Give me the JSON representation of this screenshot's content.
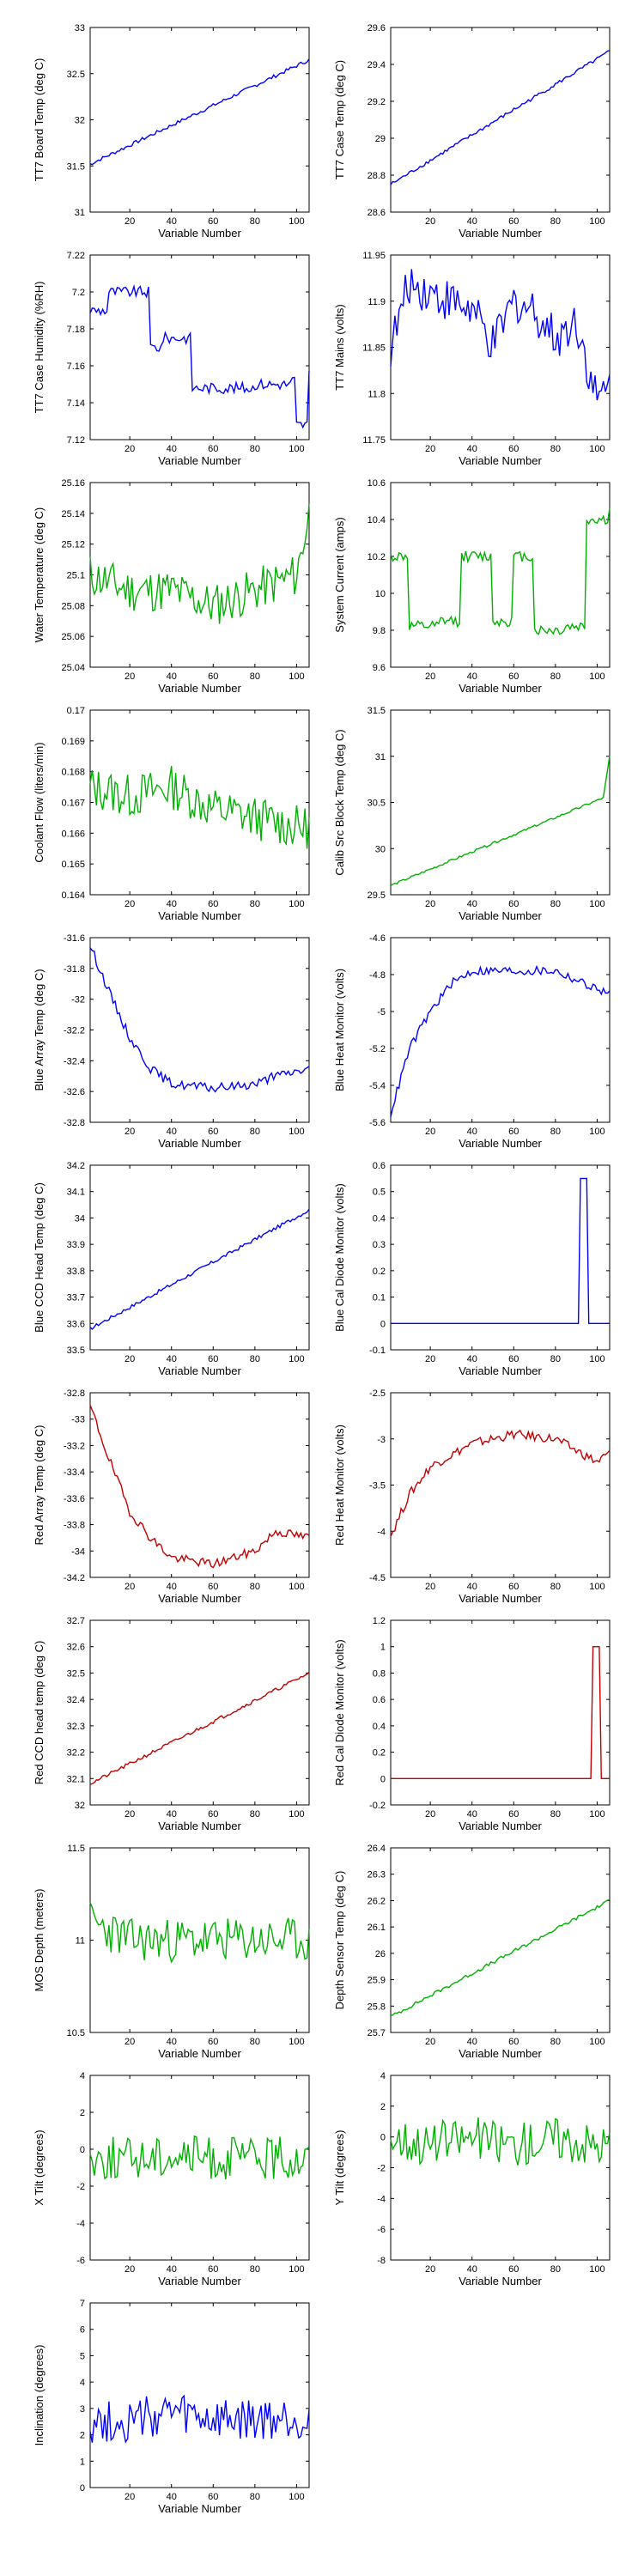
{
  "series_colors": {
    "blue": "#0000ff",
    "green": "#00b000",
    "red": "#c00000"
  },
  "chart_data": [
    {
      "type": "line",
      "title": "",
      "xlabel": "Variable Number",
      "ylabel": "TT7 Board Temp (deg C)",
      "xlim": [
        1,
        106
      ],
      "ylim": [
        31,
        33
      ],
      "xticks": [
        "20",
        "40",
        "60",
        "80",
        "100"
      ],
      "yticks": [
        "31",
        "31.5",
        "32",
        "32.5",
        "33"
      ],
      "color": "#0000ff",
      "shape": "linear",
      "series": [
        {
          "x": [
            1,
            106
          ],
          "y": [
            31.52,
            32.65
          ]
        }
      ]
    },
    {
      "type": "line",
      "title": "",
      "xlabel": "Variable Number",
      "ylabel": "TT7 Case Temp (deg C)",
      "xlim": [
        1,
        106
      ],
      "ylim": [
        28.6,
        29.6
      ],
      "xticks": [
        "20",
        "40",
        "60",
        "80",
        "100"
      ],
      "yticks": [
        "28.6",
        "28.8",
        "29",
        "29.2",
        "29.4",
        "29.6"
      ],
      "color": "#0000ff",
      "shape": "rising",
      "series": [
        {
          "x": [
            1,
            106
          ],
          "y": [
            28.75,
            29.47
          ]
        }
      ]
    },
    {
      "type": "line",
      "title": "",
      "xlabel": "Variable Number",
      "ylabel": "TT7 Case Humidity (%RH)",
      "xlim": [
        1,
        106
      ],
      "ylim": [
        7.12,
        7.22
      ],
      "xticks": [
        "20",
        "40",
        "60",
        "80",
        "100"
      ],
      "yticks": [
        "7.12",
        "7.14",
        "7.16",
        "7.18",
        "7.2",
        "7.22"
      ],
      "color": "#0000ff",
      "shape": "step",
      "series": [
        {
          "x": [
            1,
            10,
            20,
            30,
            36,
            44,
            50,
            60,
            80,
            98,
            100,
            106
          ],
          "y": [
            7.19,
            7.2,
            7.2,
            7.17,
            7.175,
            7.175,
            7.148,
            7.148,
            7.15,
            7.152,
            7.128,
            7.156
          ]
        }
      ]
    },
    {
      "type": "line",
      "title": "",
      "xlabel": "Variable Number",
      "ylabel": "TT7 Mains  (volts)",
      "xlim": [
        1,
        106
      ],
      "ylim": [
        11.75,
        11.95
      ],
      "xticks": [
        "20",
        "40",
        "60",
        "80",
        "100"
      ],
      "yticks": [
        "11.75",
        "11.8",
        "11.85",
        "11.9",
        "11.95"
      ],
      "color": "#0000ff",
      "shape": "noise",
      "series": [
        {
          "x": [
            1,
            10,
            20,
            30,
            40,
            50,
            60,
            70,
            80,
            90,
            100,
            106
          ],
          "y": [
            11.85,
            11.92,
            11.91,
            11.9,
            11.89,
            11.85,
            11.9,
            11.89,
            11.86,
            11.88,
            11.79,
            11.81
          ]
        }
      ]
    },
    {
      "type": "line",
      "title": "",
      "xlabel": "Variable Number",
      "ylabel": "Water Temperature (deg C)",
      "xlim": [
        1,
        106
      ],
      "ylim": [
        25.04,
        25.16
      ],
      "xticks": [
        "20",
        "40",
        "60",
        "80",
        "100"
      ],
      "yticks": [
        "25.04",
        "25.06",
        "25.08",
        "25.1",
        "25.12",
        "25.14",
        "25.16"
      ],
      "color": "#00b000",
      "shape": "noise",
      "series": [
        {
          "x": [
            1,
            20,
            40,
            60,
            80,
            100,
            106
          ],
          "y": [
            25.1,
            25.09,
            25.09,
            25.08,
            25.09,
            25.1,
            25.14
          ]
        }
      ]
    },
    {
      "type": "line",
      "title": "",
      "xlabel": "Variable Number",
      "ylabel": "System Current (amps)",
      "xlim": [
        1,
        106
      ],
      "ylim": [
        9.6,
        10.6
      ],
      "xticks": [
        "20",
        "40",
        "60",
        "80",
        "100"
      ],
      "yticks": [
        "9.6",
        "9.8",
        "10",
        "10.2",
        "10.4",
        "10.6"
      ],
      "color": "#00b000",
      "shape": "step",
      "series": [
        {
          "x": [
            1,
            10,
            25,
            35,
            50,
            60,
            70,
            85,
            95,
            106
          ],
          "y": [
            10.2,
            9.82,
            9.85,
            10.2,
            9.85,
            10.2,
            9.8,
            9.82,
            10.4,
            10.45
          ]
        }
      ]
    },
    {
      "type": "line",
      "title": "",
      "xlabel": "Variable Number",
      "ylabel": "Coolant Flow (liters/min)",
      "xlim": [
        1,
        106
      ],
      "ylim": [
        0.164,
        0.17
      ],
      "xticks": [
        "20",
        "40",
        "60",
        "80",
        "100"
      ],
      "yticks": [
        "0.164",
        "0.165",
        "0.166",
        "0.167",
        "0.168",
        "0.169",
        "0.17"
      ],
      "color": "#00b000",
      "shape": "noise",
      "series": [
        {
          "x": [
            1,
            20,
            40,
            60,
            80,
            100,
            106
          ],
          "y": [
            0.1675,
            0.1672,
            0.1675,
            0.1668,
            0.1665,
            0.1662,
            0.1662
          ]
        }
      ]
    },
    {
      "type": "line",
      "title": "",
      "xlabel": "Variable Number",
      "ylabel": "Calib Src Block Temp (deg C)",
      "xlim": [
        1,
        106
      ],
      "ylim": [
        29.5,
        31.5
      ],
      "xticks": [
        "20",
        "40",
        "60",
        "80",
        "100"
      ],
      "yticks": [
        "29.5",
        "30",
        "30.5",
        "31",
        "31.5"
      ],
      "color": "#00b000",
      "shape": "rising-jump",
      "series": [
        {
          "x": [
            1,
            103,
            106
          ],
          "y": [
            29.6,
            30.55,
            31.0
          ]
        }
      ]
    },
    {
      "type": "line",
      "title": "",
      "xlabel": "Variable Number",
      "ylabel": "Blue Array Temp (deg C)",
      "xlim": [
        1,
        106
      ],
      "ylim": [
        -32.8,
        -31.6
      ],
      "xticks": [
        "20",
        "40",
        "60",
        "80",
        "100"
      ],
      "yticks": [
        "-32.8",
        "-32.6",
        "-32.4",
        "-32.2",
        "-32",
        "-31.8",
        "-31.6"
      ],
      "color": "#0000ff",
      "shape": "decay",
      "series": [
        {
          "x": [
            1,
            10,
            20,
            30,
            40,
            60,
            80,
            90,
            106
          ],
          "y": [
            -31.65,
            -31.95,
            -32.25,
            -32.45,
            -32.55,
            -32.58,
            -32.55,
            -32.5,
            -32.45
          ]
        }
      ]
    },
    {
      "type": "line",
      "title": "",
      "xlabel": "Variable Number",
      "ylabel": "Blue Heat Monitor (volts)",
      "xlim": [
        1,
        106
      ],
      "ylim": [
        -5.6,
        -4.6
      ],
      "xticks": [
        "20",
        "40",
        "60",
        "80",
        "100"
      ],
      "yticks": [
        "-5.6",
        "-5.4",
        "-5.2",
        "-5",
        "-4.8",
        "-4.6"
      ],
      "color": "#0000ff",
      "shape": "rise-plateau",
      "series": [
        {
          "x": [
            1,
            10,
            20,
            30,
            40,
            60,
            80,
            100,
            106
          ],
          "y": [
            -5.55,
            -5.2,
            -5.0,
            -4.85,
            -4.78,
            -4.78,
            -4.78,
            -4.88,
            -4.9
          ]
        }
      ]
    },
    {
      "type": "line",
      "title": "",
      "xlabel": "Variable Number",
      "ylabel": "Blue CCD Head Temp (deg C)",
      "xlim": [
        1,
        106
      ],
      "ylim": [
        33.5,
        34.2
      ],
      "xticks": [
        "20",
        "40",
        "60",
        "80",
        "100"
      ],
      "yticks": [
        "33.5",
        "33.6",
        "33.7",
        "33.8",
        "33.9",
        "34",
        "34.1",
        "34.2"
      ],
      "color": "#0000ff",
      "shape": "linear",
      "series": [
        {
          "x": [
            1,
            106
          ],
          "y": [
            33.58,
            34.03
          ]
        }
      ]
    },
    {
      "type": "line",
      "title": "",
      "xlabel": "Variable Number",
      "ylabel": "Blue Cal Diode Monitor (volts)",
      "xlim": [
        1,
        106
      ],
      "ylim": [
        -0.1,
        0.6
      ],
      "xticks": [
        "20",
        "40",
        "60",
        "80",
        "100"
      ],
      "yticks": [
        "-0.1",
        "0",
        "0.1",
        "0.2",
        "0.3",
        "0.4",
        "0.5",
        "0.6"
      ],
      "color": "#0000ff",
      "shape": "spike",
      "series": [
        {
          "x": [
            1,
            91,
            92,
            95,
            96,
            106
          ],
          "y": [
            0,
            0,
            0.55,
            0.55,
            0,
            0
          ]
        }
      ]
    },
    {
      "type": "line",
      "title": "",
      "xlabel": "Variable Number",
      "ylabel": "Red Array Temp (deg C)",
      "xlim": [
        1,
        106
      ],
      "ylim": [
        -34.2,
        -32.8
      ],
      "xticks": [
        "20",
        "40",
        "60",
        "80",
        "100"
      ],
      "yticks": [
        "-34.2",
        "-34",
        "-33.8",
        "-33.6",
        "-33.4",
        "-33.2",
        "-33",
        "-32.8"
      ],
      "color": "#c00000",
      "shape": "decay",
      "series": [
        {
          "x": [
            1,
            10,
            20,
            30,
            40,
            60,
            80,
            90,
            106
          ],
          "y": [
            -32.9,
            -33.3,
            -33.7,
            -33.9,
            -34.05,
            -34.1,
            -34.0,
            -33.85,
            -33.9
          ]
        }
      ]
    },
    {
      "type": "line",
      "title": "",
      "xlabel": "Variable Number",
      "ylabel": "Red Heat Monitor (volts)",
      "xlim": [
        1,
        106
      ],
      "ylim": [
        -4.5,
        -2.5
      ],
      "xticks": [
        "20",
        "40",
        "60",
        "80",
        "100"
      ],
      "yticks": [
        "-4.5",
        "-4",
        "-3.5",
        "-3",
        "-2.5"
      ],
      "color": "#c00000",
      "shape": "rise-plateau",
      "series": [
        {
          "x": [
            1,
            10,
            20,
            40,
            60,
            80,
            100,
            106
          ],
          "y": [
            -4.05,
            -3.6,
            -3.3,
            -3.05,
            -2.95,
            -3.0,
            -3.25,
            -3.15
          ]
        }
      ]
    },
    {
      "type": "line",
      "title": "",
      "xlabel": "Variable Number",
      "ylabel": "Red CCD head temp (deg C)",
      "xlim": [
        1,
        106
      ],
      "ylim": [
        32,
        32.7
      ],
      "xticks": [
        "20",
        "40",
        "60",
        "80",
        "100"
      ],
      "yticks": [
        "32",
        "32.1",
        "32.2",
        "32.3",
        "32.4",
        "32.5",
        "32.6",
        "32.7"
      ],
      "color": "#c00000",
      "shape": "linear",
      "series": [
        {
          "x": [
            1,
            106
          ],
          "y": [
            32.08,
            32.5
          ]
        }
      ]
    },
    {
      "type": "line",
      "title": "",
      "xlabel": "Variable Number",
      "ylabel": "Red Cal Diode Monitor (volts)",
      "xlim": [
        1,
        106
      ],
      "ylim": [
        -0.2,
        1.2
      ],
      "xticks": [
        "20",
        "40",
        "60",
        "80",
        "100"
      ],
      "yticks": [
        "-0.2",
        "0",
        "0.2",
        "0.4",
        "0.6",
        "0.8",
        "1",
        "1.2"
      ],
      "color": "#c00000",
      "shape": "spike",
      "series": [
        {
          "x": [
            1,
            97,
            98,
            101,
            102,
            106
          ],
          "y": [
            0,
            0,
            1.0,
            1.0,
            0,
            0
          ]
        }
      ]
    },
    {
      "type": "line",
      "title": "",
      "xlabel": "Variable Number",
      "ylabel": "MOS Depth  (meters)",
      "xlim": [
        1,
        106
      ],
      "ylim": [
        10.5,
        11.5
      ],
      "xticks": [
        "20",
        "40",
        "60",
        "80",
        "100"
      ],
      "yticks": [
        "10.5",
        "11",
        "11.5"
      ],
      "color": "#00b000",
      "shape": "noise",
      "series": [
        {
          "x": [
            1,
            20,
            40,
            60,
            80,
            100,
            106
          ],
          "y": [
            11.1,
            11.0,
            11.0,
            11.0,
            11.0,
            11.0,
            11.0
          ]
        }
      ]
    },
    {
      "type": "line",
      "title": "",
      "xlabel": "Variable Number",
      "ylabel": "Depth Sensor Temp (deg C)",
      "xlim": [
        1,
        106
      ],
      "ylim": [
        25.7,
        26.4
      ],
      "xticks": [
        "20",
        "40",
        "60",
        "80",
        "100"
      ],
      "yticks": [
        "25.7",
        "25.8",
        "25.9",
        "26",
        "26.1",
        "26.2",
        "26.3",
        "26.4"
      ],
      "color": "#00b000",
      "shape": "linear",
      "series": [
        {
          "x": [
            1,
            106
          ],
          "y": [
            25.76,
            26.2
          ]
        }
      ]
    },
    {
      "type": "line",
      "title": "",
      "xlabel": "Variable Number",
      "ylabel": "X Tilt  (degrees)",
      "xlim": [
        1,
        106
      ],
      "ylim": [
        -6,
        4
      ],
      "xticks": [
        "20",
        "40",
        "60",
        "80",
        "100"
      ],
      "yticks": [
        "-6",
        "-4",
        "-2",
        "0",
        "2",
        "4"
      ],
      "color": "#00b000",
      "shape": "noise",
      "series": [
        {
          "x": [
            1,
            20,
            40,
            60,
            80,
            100,
            106
          ],
          "y": [
            -0.5,
            -0.5,
            -0.3,
            -0.5,
            -0.5,
            -0.5,
            -0.5
          ]
        }
      ]
    },
    {
      "type": "line",
      "title": "",
      "xlabel": "Variable Number",
      "ylabel": "Y Tilt  (degrees)",
      "xlim": [
        1,
        106
      ],
      "ylim": [
        -8,
        4
      ],
      "xticks": [
        "20",
        "40",
        "60",
        "80",
        "100"
      ],
      "yticks": [
        "-8",
        "-6",
        "-4",
        "-2",
        "0",
        "2",
        "4"
      ],
      "color": "#00b000",
      "shape": "noise",
      "series": [
        {
          "x": [
            1,
            20,
            40,
            60,
            80,
            100,
            106
          ],
          "y": [
            0,
            -0.5,
            0,
            -0.5,
            0,
            -0.5,
            -0.5
          ]
        }
      ]
    },
    {
      "type": "line",
      "title": "",
      "xlabel": "Variable Number",
      "ylabel": "Inclination  (degrees)",
      "xlim": [
        1,
        106
      ],
      "ylim": [
        0,
        7
      ],
      "xticks": [
        "20",
        "40",
        "60",
        "80",
        "100"
      ],
      "yticks": [
        "0",
        "1",
        "2",
        "3",
        "4",
        "5",
        "6",
        "7"
      ],
      "color": "#0000ff",
      "shape": "noise",
      "series": [
        {
          "x": [
            1,
            20,
            40,
            60,
            80,
            100,
            106
          ],
          "y": [
            2.5,
            2.5,
            2.8,
            2.5,
            2.5,
            2.6,
            2.5
          ]
        }
      ]
    }
  ]
}
